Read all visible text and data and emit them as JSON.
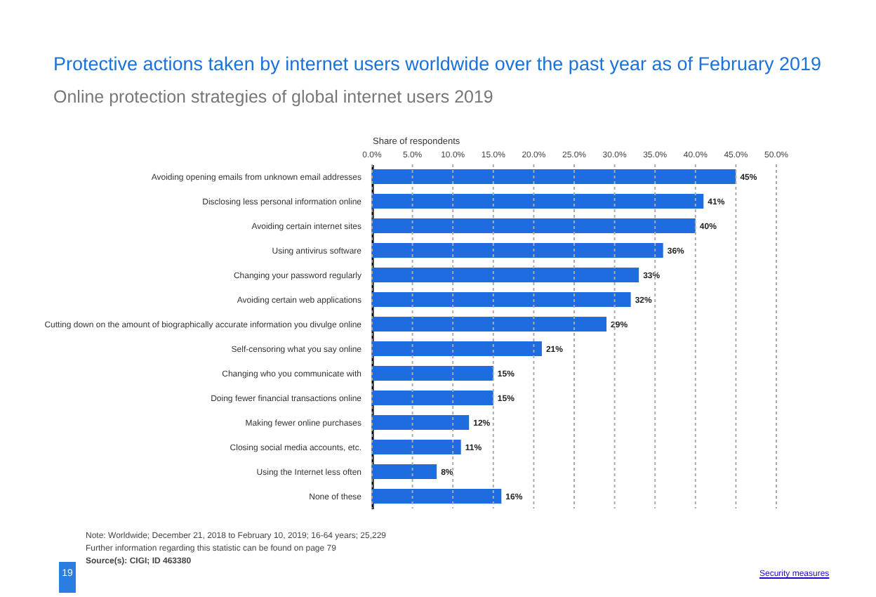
{
  "chart_data": {
    "type": "bar",
    "orientation": "horizontal",
    "title": "Protective actions taken by internet users worldwide over the past year as of February 2019",
    "subtitle": "Online protection strategies of global internet users 2019",
    "xlabel": "Share of respondents",
    "categories": [
      "Avoiding opening emails from unknown email addresses",
      "Disclosing less personal information online",
      "Avoiding certain internet sites",
      "Using antivirus software",
      "Changing your password regularly",
      "Avoiding certain web applications",
      "Cutting down on the amount of biographically accurate information you divulge online",
      "Self-censoring what you say online",
      "Changing who you communicate with",
      "Doing fewer financial transactions online",
      "Making fewer online purchases",
      "Closing social media accounts, etc.",
      "Using the Internet less often",
      "None of these"
    ],
    "values": [
      45,
      41,
      40,
      36,
      33,
      32,
      29,
      21,
      15,
      15,
      12,
      11,
      8,
      16
    ],
    "value_labels": [
      "45%",
      "41%",
      "40%",
      "36%",
      "33%",
      "32%",
      "29%",
      "21%",
      "15%",
      "15%",
      "12%",
      "11%",
      "8%",
      "16%"
    ],
    "color": "#1f6ce0",
    "xlim": [
      0,
      50
    ],
    "xticks": [
      {
        "value": 0,
        "label": "0.0%"
      },
      {
        "value": 5,
        "label": "5.0%"
      },
      {
        "value": 10,
        "label": "10.0%"
      },
      {
        "value": 15,
        "label": "15.0%"
      },
      {
        "value": 20,
        "label": "20.0%"
      },
      {
        "value": 25,
        "label": "25.0%"
      },
      {
        "value": 30,
        "label": "30.0%"
      },
      {
        "value": 35,
        "label": "35.0%"
      },
      {
        "value": 40,
        "label": "40.0%"
      },
      {
        "value": 45,
        "label": "45.0%"
      },
      {
        "value": 50,
        "label": "50.0%"
      }
    ],
    "grid": "x",
    "annotations": [
      "Note: Worldwide; December 21, 2018 to February 10, 2019; 16-64 years; 25,229",
      "Further information regarding this statistic can be found on page 79",
      "Source(s): CIGI; ID 463380",
      "19",
      "Security measures"
    ]
  }
}
